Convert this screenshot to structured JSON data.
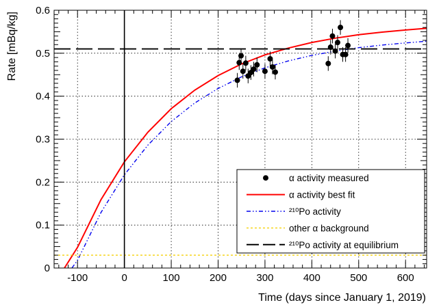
{
  "chart_data": {
    "type": "scatter",
    "xlabel": "Time (days since January 1, 2019)",
    "ylabel": "Rate [mBq/kg]",
    "xlim": [
      -150,
      645
    ],
    "ylim": [
      0,
      0.6
    ],
    "x_ticks": [
      -100,
      0,
      100,
      200,
      300,
      400,
      500,
      600
    ],
    "y_ticks": [
      0,
      0.1,
      0.2,
      0.3,
      0.4,
      0.5,
      0.6
    ],
    "grid": true,
    "legend_position": "bottom-right",
    "vertical_line_x": 0,
    "series": [
      {
        "name": "α activity measured",
        "kind": "points_with_errors",
        "color": "#000000",
        "points": [
          {
            "x": 241,
            "y": 0.437,
            "err": 0.017
          },
          {
            "x": 245,
            "y": 0.478,
            "err": 0.017
          },
          {
            "x": 249,
            "y": 0.494,
            "err": 0.017
          },
          {
            "x": 253,
            "y": 0.458,
            "err": 0.017
          },
          {
            "x": 259,
            "y": 0.477,
            "err": 0.017
          },
          {
            "x": 264,
            "y": 0.447,
            "err": 0.017
          },
          {
            "x": 270,
            "y": 0.455,
            "err": 0.017
          },
          {
            "x": 276,
            "y": 0.463,
            "err": 0.017
          },
          {
            "x": 283,
            "y": 0.473,
            "err": 0.017
          },
          {
            "x": 300,
            "y": 0.458,
            "err": 0.017
          },
          {
            "x": 311,
            "y": 0.487,
            "err": 0.017
          },
          {
            "x": 316,
            "y": 0.468,
            "err": 0.017
          },
          {
            "x": 322,
            "y": 0.456,
            "err": 0.017
          },
          {
            "x": 435,
            "y": 0.476,
            "err": 0.017
          },
          {
            "x": 440,
            "y": 0.514,
            "err": 0.017
          },
          {
            "x": 444,
            "y": 0.54,
            "err": 0.017
          },
          {
            "x": 450,
            "y": 0.505,
            "err": 0.017
          },
          {
            "x": 455,
            "y": 0.525,
            "err": 0.017
          },
          {
            "x": 461,
            "y": 0.56,
            "err": 0.017
          },
          {
            "x": 466,
            "y": 0.497,
            "err": 0.017
          },
          {
            "x": 472,
            "y": 0.497,
            "err": 0.017
          },
          {
            "x": 477,
            "y": 0.518,
            "err": 0.017
          }
        ]
      },
      {
        "name": "α activity best fit",
        "kind": "curve",
        "color": "#ff0000",
        "style": "solid",
        "x": [
          -128,
          -100,
          -50,
          0,
          50,
          100,
          150,
          200,
          250,
          300,
          350,
          400,
          450,
          500,
          550,
          600,
          645
        ],
        "y": [
          0.0,
          0.048,
          0.159,
          0.247,
          0.316,
          0.371,
          0.414,
          0.448,
          0.475,
          0.496,
          0.512,
          0.525,
          0.535,
          0.543,
          0.549,
          0.554,
          0.558
        ]
      },
      {
        "name": "²¹⁰Po activity",
        "kind": "curve",
        "color": "#0000ee",
        "style": "dash-dot-dot",
        "x": [
          -112,
          -100,
          -50,
          0,
          50,
          100,
          150,
          200,
          250,
          300,
          350,
          400,
          450,
          500,
          550,
          600,
          645
        ],
        "y": [
          0.0,
          0.018,
          0.129,
          0.217,
          0.286,
          0.341,
          0.384,
          0.418,
          0.445,
          0.466,
          0.482,
          0.495,
          0.505,
          0.513,
          0.519,
          0.524,
          0.528
        ]
      },
      {
        "name": "other α background",
        "kind": "constant",
        "color": "#f5d10a",
        "style": "dotted",
        "value": 0.03
      },
      {
        "name": "²¹⁰Po activity at equilibrium",
        "kind": "constant",
        "color": "#000000",
        "style": "long-dash",
        "value": 0.51
      }
    ],
    "legend": [
      {
        "label": "α activity measured"
      },
      {
        "label": "α activity best fit"
      },
      {
        "label": "²¹⁰Po activity"
      },
      {
        "label": "other α background"
      },
      {
        "label": "²¹⁰Po activity at equilibrium"
      }
    ]
  }
}
